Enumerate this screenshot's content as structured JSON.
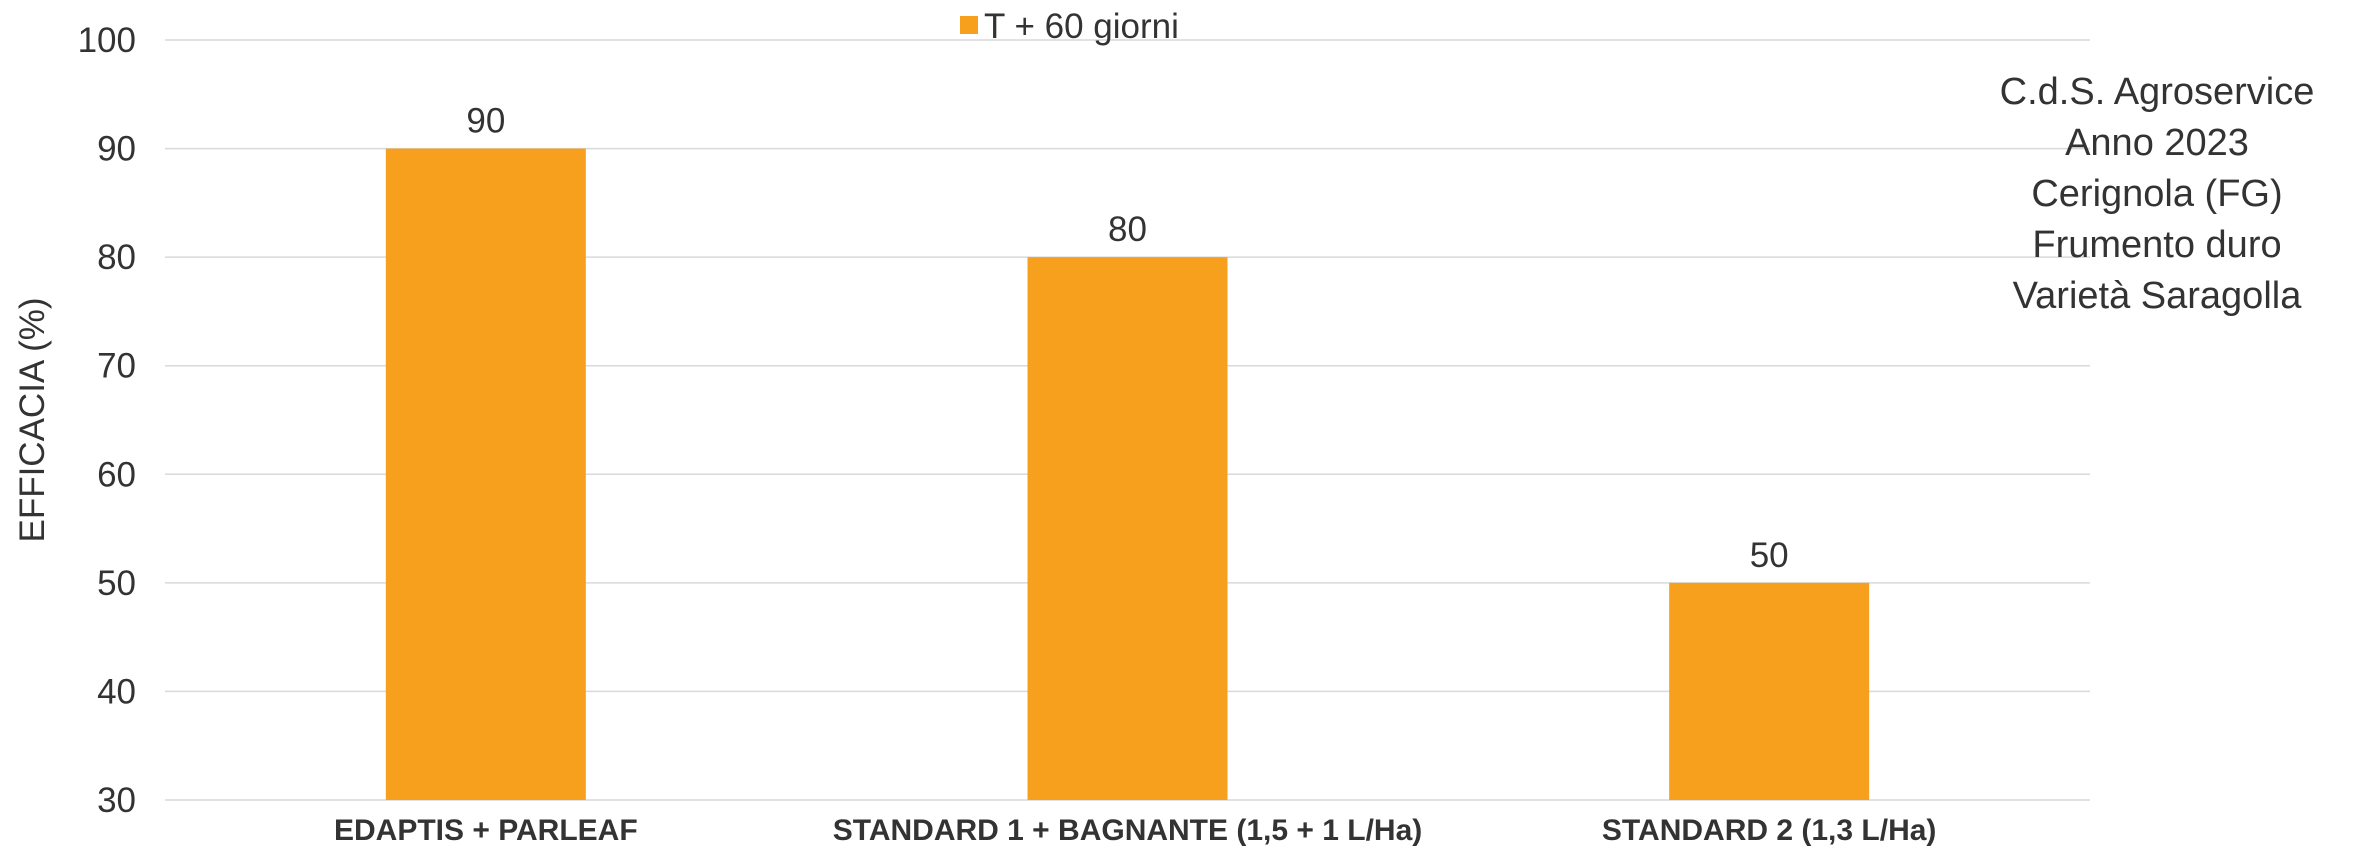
{
  "chart_data": {
    "type": "bar",
    "categories": [
      "EDAPTIS + PARLEAF",
      "STANDARD 1 + BAGNANTE (1,5 + 1 L/Ha)",
      "STANDARD 2 (1,3 L/Ha)"
    ],
    "series": [
      {
        "name": "T + 60 giorni",
        "values": [
          90,
          80,
          50
        ],
        "color": "#F7A01E"
      }
    ],
    "ylabel": "EFFICACIA (%)",
    "ylim": [
      30,
      100
    ],
    "yticks": [
      30,
      40,
      50,
      60,
      70,
      80,
      90,
      100
    ],
    "grid": true,
    "gridColor": "#d9d9d9",
    "legend_position": "top-center",
    "annotation": [
      "C.d.S. Agroservice",
      "Anno 2023",
      "Cerignola (FG)",
      "Frumento duro",
      "Varietà Saragolla"
    ]
  }
}
